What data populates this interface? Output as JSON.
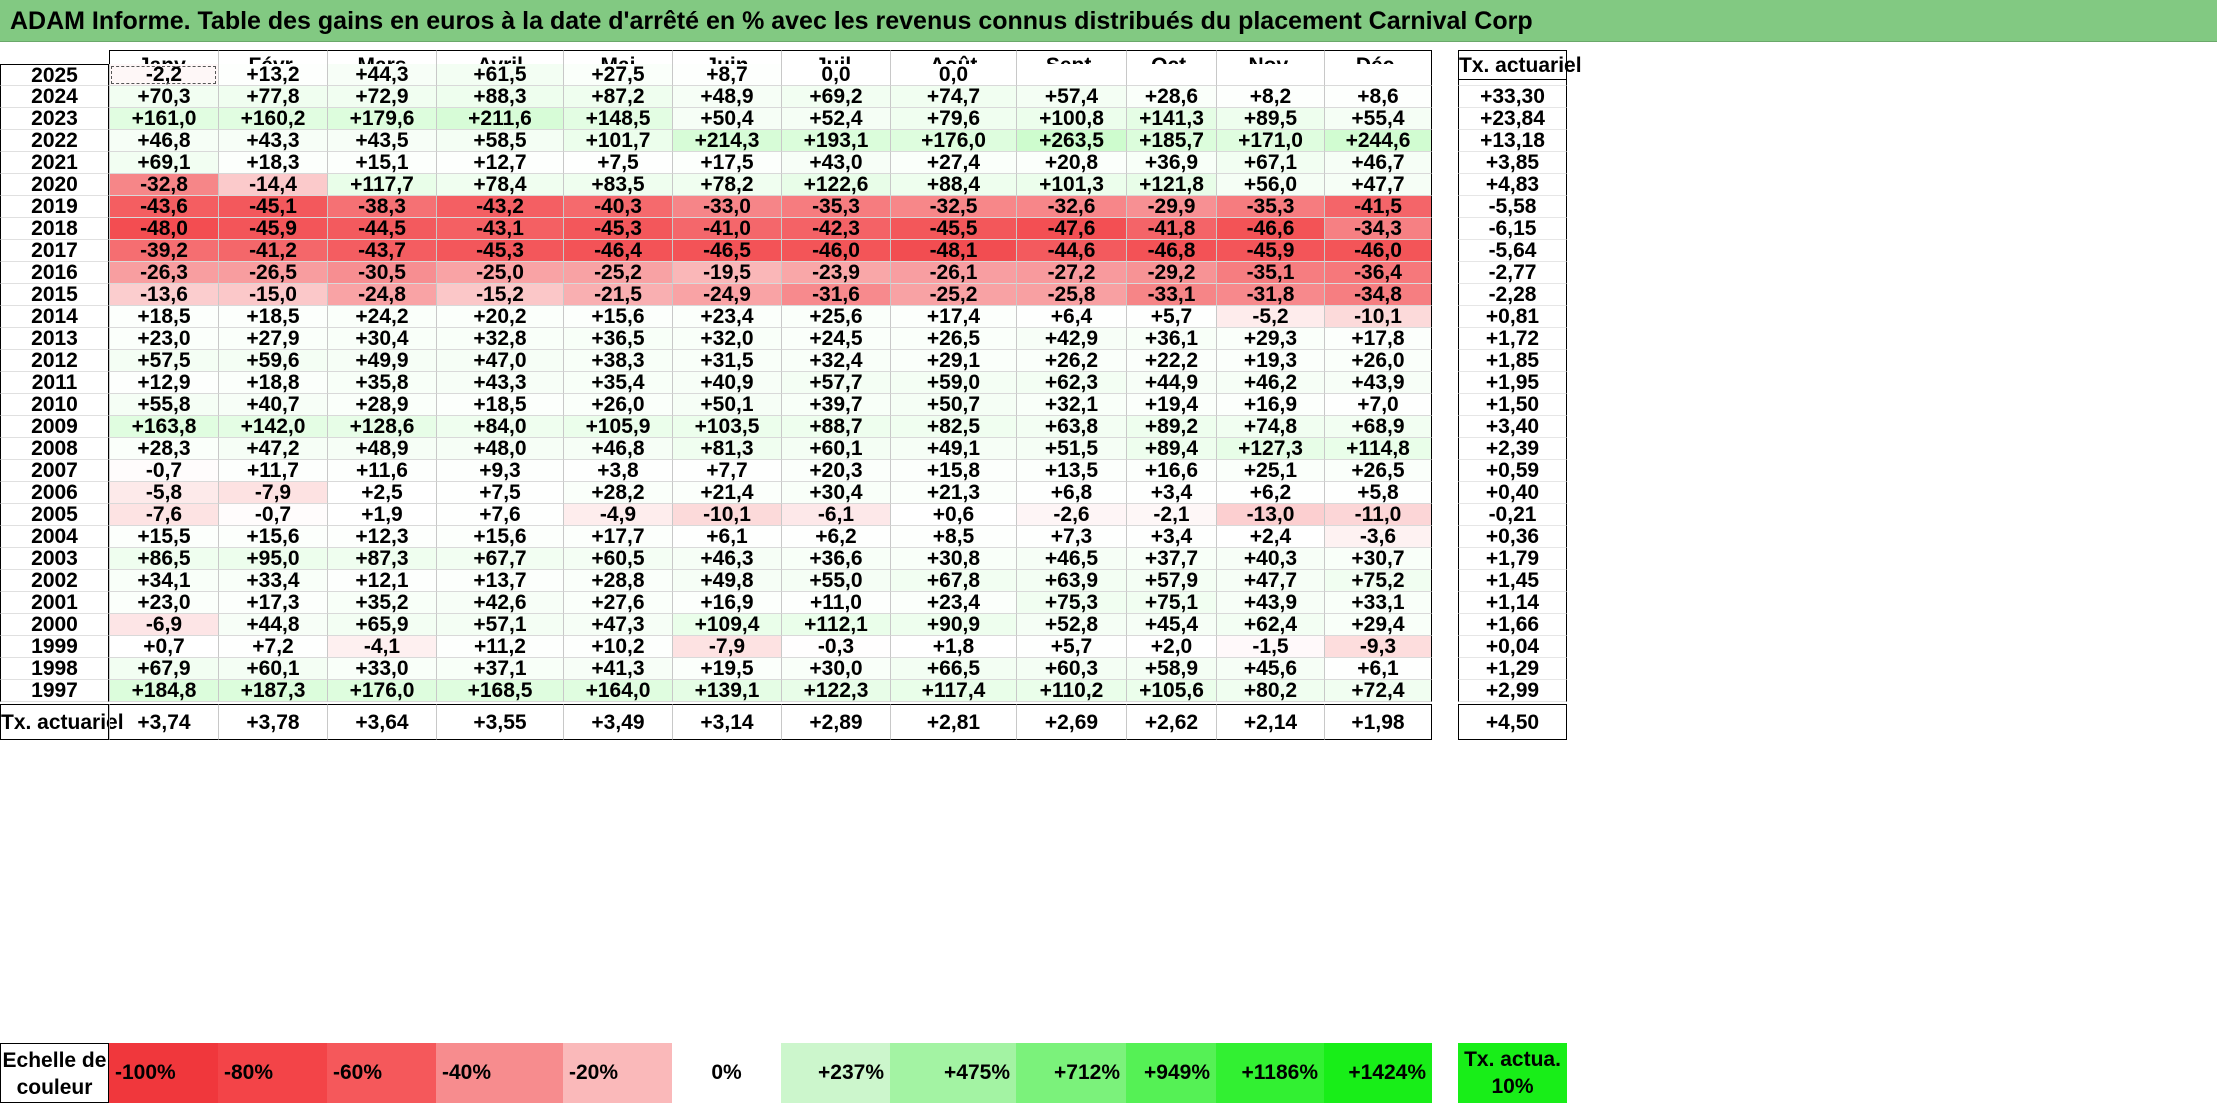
{
  "title": "ADAM Informe. Table des gains en euros à la date d'arrêté en % avec les revenus connus distribués du placement Carnival Corp",
  "months": [
    "Janv.",
    "Févr.",
    "Mars",
    "Avril",
    "Mai",
    "Juin",
    "Juil.",
    "Août",
    "Sept.",
    "Oct.",
    "Nov.",
    "Déc."
  ],
  "yearly_header": "Tx. actuariel",
  "rows": [
    {
      "year": "2025",
      "values": [
        "-2,2",
        "+13,2",
        "+44,3",
        "+61,5",
        "+27,5",
        "+8,7",
        "0,0",
        "0,0",
        "",
        "",
        "",
        ""
      ],
      "rate": ""
    },
    {
      "year": "2024",
      "values": [
        "+70,3",
        "+77,8",
        "+72,9",
        "+88,3",
        "+87,2",
        "+48,9",
        "+69,2",
        "+74,7",
        "+57,4",
        "+28,6",
        "+8,2",
        "+8,6"
      ],
      "rate": "+33,30"
    },
    {
      "year": "2023",
      "values": [
        "+161,0",
        "+160,2",
        "+179,6",
        "+211,6",
        "+148,5",
        "+50,4",
        "+52,4",
        "+79,6",
        "+100,8",
        "+141,3",
        "+89,5",
        "+55,4"
      ],
      "rate": "+23,84"
    },
    {
      "year": "2022",
      "values": [
        "+46,8",
        "+43,3",
        "+43,5",
        "+58,5",
        "+101,7",
        "+214,3",
        "+193,1",
        "+176,0",
        "+263,5",
        "+185,7",
        "+171,0",
        "+244,6"
      ],
      "rate": "+13,18"
    },
    {
      "year": "2021",
      "values": [
        "+69,1",
        "+18,3",
        "+15,1",
        "+12,7",
        "+7,5",
        "+17,5",
        "+43,0",
        "+27,4",
        "+20,8",
        "+36,9",
        "+67,1",
        "+46,7"
      ],
      "rate": "+3,85"
    },
    {
      "year": "2020",
      "values": [
        "-32,8",
        "-14,4",
        "+117,7",
        "+78,4",
        "+83,5",
        "+78,2",
        "+122,6",
        "+88,4",
        "+101,3",
        "+121,8",
        "+56,0",
        "+47,7"
      ],
      "rate": "+4,83"
    },
    {
      "year": "2019",
      "values": [
        "-43,6",
        "-45,1",
        "-38,3",
        "-43,2",
        "-40,3",
        "-33,0",
        "-35,3",
        "-32,5",
        "-32,6",
        "-29,9",
        "-35,3",
        "-41,5"
      ],
      "rate": "-5,58"
    },
    {
      "year": "2018",
      "values": [
        "-48,0",
        "-45,9",
        "-44,5",
        "-43,1",
        "-45,3",
        "-41,0",
        "-42,3",
        "-45,5",
        "-47,6",
        "-41,8",
        "-46,6",
        "-34,3"
      ],
      "rate": "-6,15"
    },
    {
      "year": "2017",
      "values": [
        "-39,2",
        "-41,2",
        "-43,7",
        "-45,3",
        "-46,4",
        "-46,5",
        "-46,0",
        "-48,1",
        "-44,6",
        "-46,8",
        "-45,9",
        "-46,0"
      ],
      "rate": "-5,64"
    },
    {
      "year": "2016",
      "values": [
        "-26,3",
        "-26,5",
        "-30,5",
        "-25,0",
        "-25,2",
        "-19,5",
        "-23,9",
        "-26,1",
        "-27,2",
        "-29,2",
        "-35,1",
        "-36,4"
      ],
      "rate": "-2,77"
    },
    {
      "year": "2015",
      "values": [
        "-13,6",
        "-15,0",
        "-24,8",
        "-15,2",
        "-21,5",
        "-24,9",
        "-31,6",
        "-25,2",
        "-25,8",
        "-33,1",
        "-31,8",
        "-34,8"
      ],
      "rate": "-2,28"
    },
    {
      "year": "2014",
      "values": [
        "+18,5",
        "+18,5",
        "+24,2",
        "+20,2",
        "+15,6",
        "+23,4",
        "+25,6",
        "+17,4",
        "+6,4",
        "+5,7",
        "-5,2",
        "-10,1"
      ],
      "rate": "+0,81"
    },
    {
      "year": "2013",
      "values": [
        "+23,0",
        "+27,9",
        "+30,4",
        "+32,8",
        "+36,5",
        "+32,0",
        "+24,5",
        "+26,5",
        "+42,9",
        "+36,1",
        "+29,3",
        "+17,8"
      ],
      "rate": "+1,72"
    },
    {
      "year": "2012",
      "values": [
        "+57,5",
        "+59,6",
        "+49,9",
        "+47,0",
        "+38,3",
        "+31,5",
        "+32,4",
        "+29,1",
        "+26,2",
        "+22,2",
        "+19,3",
        "+26,0"
      ],
      "rate": "+1,85"
    },
    {
      "year": "2011",
      "values": [
        "+12,9",
        "+18,8",
        "+35,8",
        "+43,3",
        "+35,4",
        "+40,9",
        "+57,7",
        "+59,0",
        "+62,3",
        "+44,9",
        "+46,2",
        "+43,9"
      ],
      "rate": "+1,95"
    },
    {
      "year": "2010",
      "values": [
        "+55,8",
        "+40,7",
        "+28,9",
        "+18,5",
        "+26,0",
        "+50,1",
        "+39,7",
        "+50,7",
        "+32,1",
        "+19,4",
        "+16,9",
        "+7,0"
      ],
      "rate": "+1,50"
    },
    {
      "year": "2009",
      "values": [
        "+163,8",
        "+142,0",
        "+128,6",
        "+84,0",
        "+105,9",
        "+103,5",
        "+88,7",
        "+82,5",
        "+63,8",
        "+89,2",
        "+74,8",
        "+68,9"
      ],
      "rate": "+3,40"
    },
    {
      "year": "2008",
      "values": [
        "+28,3",
        "+47,2",
        "+48,9",
        "+48,0",
        "+46,8",
        "+81,3",
        "+60,1",
        "+49,1",
        "+51,5",
        "+89,4",
        "+127,3",
        "+114,8"
      ],
      "rate": "+2,39"
    },
    {
      "year": "2007",
      "values": [
        "-0,7",
        "+11,7",
        "+11,6",
        "+9,3",
        "+3,8",
        "+7,7",
        "+20,3",
        "+15,8",
        "+13,5",
        "+16,6",
        "+25,1",
        "+26,5"
      ],
      "rate": "+0,59"
    },
    {
      "year": "2006",
      "values": [
        "-5,8",
        "-7,9",
        "+2,5",
        "+7,5",
        "+28,2",
        "+21,4",
        "+30,4",
        "+21,3",
        "+6,8",
        "+3,4",
        "+6,2",
        "+5,8"
      ],
      "rate": "+0,40"
    },
    {
      "year": "2005",
      "values": [
        "-7,6",
        "-0,7",
        "+1,9",
        "+7,6",
        "-4,9",
        "-10,1",
        "-6,1",
        "+0,6",
        "-2,6",
        "-2,1",
        "-13,0",
        "-11,0"
      ],
      "rate": "-0,21"
    },
    {
      "year": "2004",
      "values": [
        "+15,5",
        "+15,6",
        "+12,3",
        "+15,6",
        "+17,7",
        "+6,1",
        "+6,2",
        "+8,5",
        "+7,3",
        "+3,4",
        "+2,4",
        "-3,6"
      ],
      "rate": "+0,36"
    },
    {
      "year": "2003",
      "values": [
        "+86,5",
        "+95,0",
        "+87,3",
        "+67,7",
        "+60,5",
        "+46,3",
        "+36,6",
        "+30,8",
        "+46,5",
        "+37,7",
        "+40,3",
        "+30,7"
      ],
      "rate": "+1,79"
    },
    {
      "year": "2002",
      "values": [
        "+34,1",
        "+33,4",
        "+12,1",
        "+13,7",
        "+28,8",
        "+49,8",
        "+55,0",
        "+67,8",
        "+63,9",
        "+57,9",
        "+47,7",
        "+75,2"
      ],
      "rate": "+1,45"
    },
    {
      "year": "2001",
      "values": [
        "+23,0",
        "+17,3",
        "+35,2",
        "+42,6",
        "+27,6",
        "+16,9",
        "+11,0",
        "+23,4",
        "+75,3",
        "+75,1",
        "+43,9",
        "+33,1"
      ],
      "rate": "+1,14"
    },
    {
      "year": "2000",
      "values": [
        "-6,9",
        "+44,8",
        "+65,9",
        "+57,1",
        "+47,3",
        "+109,4",
        "+112,1",
        "+90,9",
        "+52,8",
        "+45,4",
        "+62,4",
        "+29,4"
      ],
      "rate": "+1,66"
    },
    {
      "year": "1999",
      "values": [
        "+0,7",
        "+7,2",
        "-4,1",
        "+11,2",
        "+10,2",
        "-7,9",
        "-0,3",
        "+1,8",
        "+5,7",
        "+2,0",
        "-1,5",
        "-9,3"
      ],
      "rate": "+0,04"
    },
    {
      "year": "1998",
      "values": [
        "+67,9",
        "+60,1",
        "+33,0",
        "+37,1",
        "+41,3",
        "+19,5",
        "+30,0",
        "+66,5",
        "+60,3",
        "+58,9",
        "+45,6",
        "+6,1"
      ],
      "rate": "+1,29"
    },
    {
      "year": "1997",
      "values": [
        "+184,8",
        "+187,3",
        "+176,0",
        "+168,5",
        "+164,0",
        "+139,1",
        "+122,3",
        "+117,4",
        "+110,2",
        "+105,6",
        "+80,2",
        "+72,4"
      ],
      "rate": "+2,99"
    }
  ],
  "totals": {
    "label": "Tx. actuariel",
    "values": [
      "+3,74",
      "+3,78",
      "+3,64",
      "+3,55",
      "+3,49",
      "+3,14",
      "+2,89",
      "+2,81",
      "+2,69",
      "+2,62",
      "+2,14",
      "+1,98"
    ],
    "rate": "+4,50"
  },
  "legend": {
    "label": "Echelle de couleur",
    "items": [
      {
        "text": "-100%",
        "color": "#f0373c"
      },
      {
        "text": "-80%",
        "color": "#f34448"
      },
      {
        "text": "-60%",
        "color": "#f5585b"
      },
      {
        "text": "-40%",
        "color": "#f78c8e"
      },
      {
        "text": "-20%",
        "color": "#fab9ba"
      },
      {
        "text": "0%",
        "color": "#ffffff"
      },
      {
        "text": "+237%",
        "color": "#ccf6cc"
      },
      {
        "text": "+475%",
        "color": "#a3f3a3"
      },
      {
        "text": "+712%",
        "color": "#7bf27b"
      },
      {
        "text": "+949%",
        "color": "#55f155"
      },
      {
        "text": "+1186%",
        "color": "#32f032"
      },
      {
        "text": "+1424%",
        "color": "#18ee18"
      }
    ],
    "rate_label": "Tx. actua. 10%",
    "rate_color": "#18ee18"
  },
  "colors": {
    "title_bar": "#82c982"
  }
}
